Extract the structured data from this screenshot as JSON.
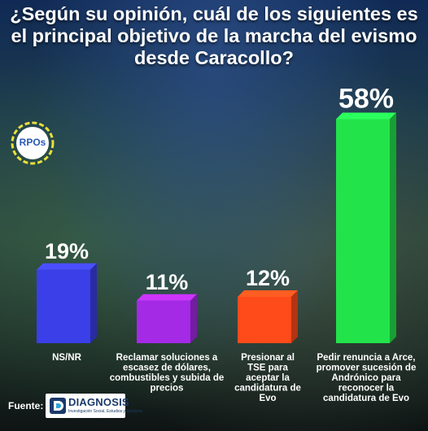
{
  "header": {
    "title": "¿Según su opinión, cuál de los siguientes es el principal objetivo de la marcha del evismo desde Caracollo?"
  },
  "logo": {
    "text": "RPOs"
  },
  "chart_data": {
    "type": "bar",
    "title": "¿Según su opinión, cuál de los siguientes es el principal objetivo de la marcha del evismo desde Caracollo?",
    "categories": [
      "NS/NR",
      "Reclamar soluciones a escasez de dólares, combustibles y subida de precios",
      "Presionar al TSE para aceptar la candidatura de Evo",
      "Pedir renuncia a Arce, promover sucesión de Andrónico para reconocer la candidatura de Evo"
    ],
    "category_lines": [
      [
        "NS/NR"
      ],
      [
        "Reclamar soluciones a",
        "escasez de dólares,",
        "combustibles y subida de",
        "precios"
      ],
      [
        "Presionar al",
        "TSE para",
        "aceptar la",
        "candidatura de",
        "Evo"
      ],
      [
        "Pedir renuncia a Arce,",
        "promover sucesión de",
        "Andrónico para",
        "reconocer la",
        "candidatura de Evo"
      ]
    ],
    "values": [
      19,
      11,
      12,
      58
    ],
    "value_labels": [
      "19%",
      "11%",
      "12%",
      "58%"
    ],
    "unit": "%",
    "colors": [
      "#3a3fe8",
      "#a42ae6",
      "#ff4a1a",
      "#22e34a"
    ],
    "ylim": [
      0,
      60
    ],
    "grid": false,
    "legend": "none"
  },
  "footer": {
    "source_label": "Fuente:",
    "source_name": "DIAGNOSIS",
    "source_tagline": "Investigación Social, Estudios y Sondeos"
  }
}
